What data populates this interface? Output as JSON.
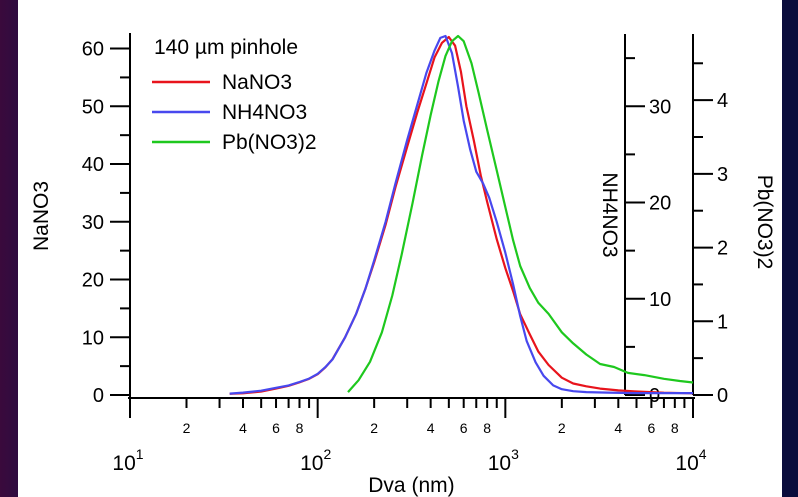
{
  "chart_data": {
    "type": "line",
    "title": "",
    "xlabel": "Dva (nm)",
    "xscale": "log",
    "xlim": [
      10,
      10000
    ],
    "x_major_tick_labels": [
      {
        "base": "10",
        "exp": "1",
        "x": 10
      },
      {
        "base": "10",
        "exp": "2",
        "x": 100
      },
      {
        "base": "10",
        "exp": "3",
        "x": 1000
      },
      {
        "base": "10",
        "exp": "4",
        "x": 10000
      }
    ],
    "x_minor_tick_labels": [
      {
        "text": "2",
        "x": 20
      },
      {
        "text": "4",
        "x": 40
      },
      {
        "text": "6",
        "x": 60
      },
      {
        "text": "8",
        "x": 80
      },
      {
        "text": "2",
        "x": 200
      },
      {
        "text": "4",
        "x": 400
      },
      {
        "text": "6",
        "x": 600
      },
      {
        "text": "8",
        "x": 800
      },
      {
        "text": "2",
        "x": 2000
      },
      {
        "text": "4",
        "x": 4000
      },
      {
        "text": "6",
        "x": 6000
      },
      {
        "text": "8",
        "x": 8000
      }
    ],
    "legend": {
      "title": "140 µm pinhole",
      "placement": "top-left"
    },
    "axes": [
      {
        "id": "left",
        "label": "NaNO3",
        "ylim": [
          0,
          62
        ],
        "ticks": [
          0,
          10,
          20,
          30,
          40,
          50,
          60
        ],
        "position": "left"
      },
      {
        "id": "mid",
        "label": "NH4NO3",
        "ylim": [
          0,
          37.3
        ],
        "ticks": [
          0,
          10,
          20,
          30
        ],
        "position": "inner-right"
      },
      {
        "id": "right",
        "label": "Pb(NO3)2",
        "ylim": [
          0,
          4.87
        ],
        "ticks": [
          0,
          1,
          2,
          3,
          4
        ],
        "position": "right"
      }
    ],
    "series": [
      {
        "name": "NaNO3",
        "color": "#e8141c",
        "axis": "left",
        "points": [
          [
            34,
            0.2
          ],
          [
            40,
            0.3
          ],
          [
            50,
            0.6
          ],
          [
            60,
            1.1
          ],
          [
            70,
            1.6
          ],
          [
            80,
            2.2
          ],
          [
            90,
            2.8
          ],
          [
            100,
            3.6
          ],
          [
            110,
            4.8
          ],
          [
            120,
            6.2
          ],
          [
            140,
            10
          ],
          [
            160,
            14
          ],
          [
            180,
            18.5
          ],
          [
            200,
            23
          ],
          [
            230,
            29.5
          ],
          [
            260,
            36
          ],
          [
            300,
            43
          ],
          [
            340,
            49
          ],
          [
            380,
            54
          ],
          [
            420,
            58.5
          ],
          [
            460,
            61
          ],
          [
            500,
            62
          ],
          [
            540,
            60.5
          ],
          [
            580,
            56
          ],
          [
            620,
            50
          ],
          [
            680,
            44
          ],
          [
            740,
            38
          ],
          [
            800,
            33.5
          ],
          [
            900,
            27
          ],
          [
            1000,
            22
          ],
          [
            1100,
            18
          ],
          [
            1200,
            14
          ],
          [
            1350,
            10.5
          ],
          [
            1500,
            7.5
          ],
          [
            1700,
            5.2
          ],
          [
            2000,
            3
          ],
          [
            2300,
            2
          ],
          [
            2700,
            1.5
          ],
          [
            3200,
            1.1
          ],
          [
            4000,
            0.8
          ],
          [
            5000,
            0.6
          ],
          [
            7000,
            0.4
          ],
          [
            10000,
            0.3
          ]
        ]
      },
      {
        "name": "NH4NO3",
        "color": "#4848ee",
        "axis": "mid",
        "points": [
          [
            34,
            0.15
          ],
          [
            40,
            0.25
          ],
          [
            50,
            0.45
          ],
          [
            60,
            0.75
          ],
          [
            70,
            1.0
          ],
          [
            80,
            1.35
          ],
          [
            90,
            1.7
          ],
          [
            100,
            2.2
          ],
          [
            110,
            2.9
          ],
          [
            120,
            3.7
          ],
          [
            140,
            6
          ],
          [
            160,
            8.4
          ],
          [
            180,
            11.1
          ],
          [
            200,
            14
          ],
          [
            230,
            18
          ],
          [
            260,
            22
          ],
          [
            300,
            26.5
          ],
          [
            340,
            30.2
          ],
          [
            380,
            33.5
          ],
          [
            420,
            35.8
          ],
          [
            450,
            37.1
          ],
          [
            480,
            37.3
          ],
          [
            520,
            35.5
          ],
          [
            560,
            32
          ],
          [
            600,
            28.5
          ],
          [
            650,
            25.5
          ],
          [
            700,
            23.2
          ],
          [
            760,
            22
          ],
          [
            820,
            20.5
          ],
          [
            900,
            18
          ],
          [
            1000,
            14.8
          ],
          [
            1100,
            11.5
          ],
          [
            1200,
            8.2
          ],
          [
            1300,
            5.6
          ],
          [
            1450,
            3.4
          ],
          [
            1600,
            2
          ],
          [
            1800,
            1
          ],
          [
            2000,
            0.6
          ],
          [
            2300,
            0.4
          ],
          [
            2700,
            0.3
          ],
          [
            3500,
            0.25
          ],
          [
            5000,
            0.2
          ],
          [
            10000,
            0.2
          ]
        ]
      },
      {
        "name": "Pb(NO3)2",
        "color": "#1ec81e",
        "axis": "right",
        "points": [
          [
            145,
            0.04
          ],
          [
            165,
            0.2
          ],
          [
            190,
            0.45
          ],
          [
            220,
            0.85
          ],
          [
            250,
            1.35
          ],
          [
            280,
            1.9
          ],
          [
            320,
            2.6
          ],
          [
            360,
            3.25
          ],
          [
            400,
            3.8
          ],
          [
            440,
            4.25
          ],
          [
            480,
            4.6
          ],
          [
            520,
            4.8
          ],
          [
            560,
            4.87
          ],
          [
            600,
            4.8
          ],
          [
            660,
            4.5
          ],
          [
            720,
            4.1
          ],
          [
            800,
            3.6
          ],
          [
            900,
            3.05
          ],
          [
            1000,
            2.55
          ],
          [
            1100,
            2.1
          ],
          [
            1200,
            1.75
          ],
          [
            1350,
            1.45
          ],
          [
            1500,
            1.25
          ],
          [
            1700,
            1.1
          ],
          [
            2000,
            0.85
          ],
          [
            2300,
            0.7
          ],
          [
            2700,
            0.55
          ],
          [
            3200,
            0.42
          ],
          [
            3800,
            0.38
          ],
          [
            4500,
            0.3
          ],
          [
            5500,
            0.27
          ],
          [
            7000,
            0.22
          ],
          [
            8500,
            0.19
          ],
          [
            10000,
            0.17
          ]
        ]
      }
    ]
  }
}
